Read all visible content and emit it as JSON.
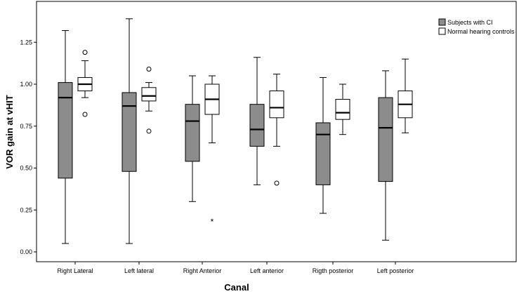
{
  "chart_data": {
    "type": "boxplot",
    "xlabel": "Canal",
    "ylabel": "VOR gain at vHIT",
    "ylim": [
      -0.03,
      1.42
    ],
    "yticks": [
      0.0,
      0.25,
      0.5,
      0.75,
      1.0,
      1.25
    ],
    "ytick_labels": [
      "0.00",
      "0.25",
      "0.50",
      "0.75",
      "1.00",
      "1.25"
    ],
    "legend_position": "top-right",
    "categories": [
      "Right Lateral",
      "Left lateral",
      "Right Anterior",
      "Left anterior",
      "Rigth posterior",
      "Left posterior"
    ],
    "series": [
      {
        "name": "Subjects with CI",
        "color": "#8c8c8c",
        "boxes": [
          {
            "whisker_low": 0.05,
            "q1": 0.44,
            "median": 0.92,
            "q3": 1.01,
            "whisker_high": 1.32,
            "outliers": [],
            "extremes": []
          },
          {
            "whisker_low": 0.05,
            "q1": 0.48,
            "median": 0.87,
            "q3": 0.95,
            "whisker_high": 1.39,
            "outliers": [],
            "extremes": []
          },
          {
            "whisker_low": 0.3,
            "q1": 0.54,
            "median": 0.78,
            "q3": 0.88,
            "whisker_high": 1.05,
            "outliers": [],
            "extremes": []
          },
          {
            "whisker_low": 0.4,
            "q1": 0.63,
            "median": 0.73,
            "q3": 0.88,
            "whisker_high": 1.16,
            "outliers": [],
            "extremes": []
          },
          {
            "whisker_low": 0.23,
            "q1": 0.4,
            "median": 0.7,
            "q3": 0.77,
            "whisker_high": 1.04,
            "outliers": [],
            "extremes": []
          },
          {
            "whisker_low": 0.07,
            "q1": 0.42,
            "median": 0.74,
            "q3": 0.92,
            "whisker_high": 1.08,
            "outliers": [],
            "extremes": []
          }
        ]
      },
      {
        "name": "Normal hearing controls",
        "color": "#ffffff",
        "boxes": [
          {
            "whisker_low": 0.92,
            "q1": 0.96,
            "median": 1.0,
            "q3": 1.04,
            "whisker_high": 1.14,
            "outliers": [
              0.82,
              1.19
            ],
            "extremes": []
          },
          {
            "whisker_low": 0.84,
            "q1": 0.9,
            "median": 0.93,
            "q3": 0.98,
            "whisker_high": 1.01,
            "outliers": [
              0.72,
              1.09
            ],
            "extremes": []
          },
          {
            "whisker_low": 0.65,
            "q1": 0.82,
            "median": 0.91,
            "q3": 1.0,
            "whisker_high": 1.05,
            "outliers": [],
            "extremes": [
              0.18
            ]
          },
          {
            "whisker_low": 0.63,
            "q1": 0.8,
            "median": 0.86,
            "q3": 0.96,
            "whisker_high": 1.06,
            "outliers": [
              0.41
            ],
            "extremes": []
          },
          {
            "whisker_low": 0.7,
            "q1": 0.79,
            "median": 0.83,
            "q3": 0.91,
            "whisker_high": 1.0,
            "outliers": [],
            "extremes": []
          },
          {
            "whisker_low": 0.71,
            "q1": 0.8,
            "median": 0.88,
            "q3": 0.96,
            "whisker_high": 1.15,
            "outliers": [],
            "extremes": []
          }
        ]
      }
    ]
  }
}
